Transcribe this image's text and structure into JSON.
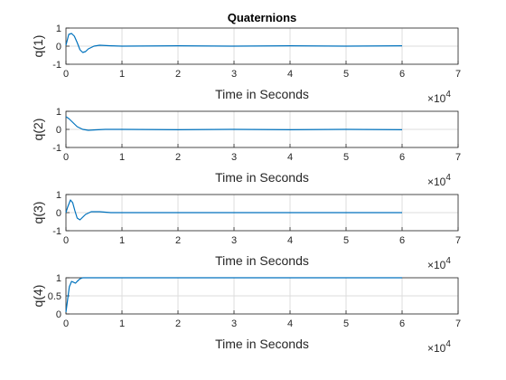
{
  "figure": {
    "title": "Quaternions",
    "accent_color": "#0072BD",
    "grid_color": "#dcdcdc",
    "axis_color": "#262626"
  },
  "chart_data": [
    {
      "type": "line",
      "title": "Quaternions",
      "xlabel": "Time in Seconds",
      "ylabel": "q(1)",
      "x_exponent_label": "×10",
      "x_exponent": "4",
      "xlim": [
        0,
        7
      ],
      "ylim": [
        -1,
        1
      ],
      "xticks": [
        0,
        1,
        2,
        3,
        4,
        5,
        6,
        7
      ],
      "yticks": [
        -1,
        0,
        1
      ],
      "grid": true,
      "series": [
        {
          "color": "#0072BD",
          "x": [
            0,
            0.05,
            0.1,
            0.15,
            0.2,
            0.25,
            0.3,
            0.35,
            0.4,
            0.5,
            0.6,
            0.8,
            1.0,
            2.0,
            3.0,
            4.0,
            5.0,
            6.0
          ],
          "y": [
            0.05,
            0.65,
            0.7,
            0.55,
            0.2,
            -0.2,
            -0.35,
            -0.3,
            -0.15,
            0.0,
            0.05,
            0.02,
            0.0,
            0.02,
            0.0,
            0.02,
            0.0,
            0.02
          ]
        }
      ]
    },
    {
      "type": "line",
      "xlabel": "Time in Seconds",
      "ylabel": "q(2)",
      "x_exponent_label": "×10",
      "x_exponent": "4",
      "xlim": [
        0,
        7
      ],
      "ylim": [
        -1,
        1
      ],
      "xticks": [
        0,
        1,
        2,
        3,
        4,
        5,
        6,
        7
      ],
      "yticks": [
        -1,
        0,
        1
      ],
      "grid": true,
      "series": [
        {
          "color": "#0072BD",
          "x": [
            0,
            0.05,
            0.1,
            0.15,
            0.2,
            0.3,
            0.4,
            0.5,
            0.7,
            1.0,
            2.0,
            3.0,
            4.0,
            5.0,
            6.0
          ],
          "y": [
            0.7,
            0.6,
            0.45,
            0.3,
            0.15,
            0.0,
            -0.05,
            -0.03,
            0.0,
            0.0,
            -0.02,
            0.0,
            -0.02,
            0.0,
            -0.02
          ]
        }
      ]
    },
    {
      "type": "line",
      "xlabel": "Time in Seconds",
      "ylabel": "q(3)",
      "x_exponent_label": "×10",
      "x_exponent": "4",
      "xlim": [
        0,
        7
      ],
      "ylim": [
        -1,
        1
      ],
      "xticks": [
        0,
        1,
        2,
        3,
        4,
        5,
        6,
        7
      ],
      "yticks": [
        -1,
        0,
        1
      ],
      "grid": true,
      "series": [
        {
          "color": "#0072BD",
          "x": [
            0,
            0.03,
            0.08,
            0.12,
            0.16,
            0.2,
            0.25,
            0.3,
            0.35,
            0.45,
            0.6,
            0.8,
            1.0,
            2.0,
            3.0,
            4.0,
            5.0,
            6.0
          ],
          "y": [
            0.0,
            0.3,
            0.7,
            0.55,
            0.1,
            -0.3,
            -0.4,
            -0.25,
            -0.1,
            0.05,
            0.05,
            0.0,
            0.0,
            0.0,
            0.0,
            0.0,
            0.0,
            0.0
          ]
        }
      ]
    },
    {
      "type": "line",
      "xlabel": "Time in Seconds",
      "ylabel": "q(4)",
      "x_exponent_label": "×10",
      "x_exponent": "4",
      "xlim": [
        0,
        7
      ],
      "ylim": [
        0,
        1
      ],
      "xticks": [
        0,
        1,
        2,
        3,
        4,
        5,
        6,
        7
      ],
      "yticks": [
        0,
        0.5,
        1
      ],
      "grid": true,
      "series": [
        {
          "color": "#0072BD",
          "x": [
            0,
            0.03,
            0.06,
            0.1,
            0.13,
            0.17,
            0.2,
            0.25,
            0.3,
            0.4,
            0.6,
            1.0,
            2.0,
            3.0,
            4.0,
            5.0,
            6.0
          ],
          "y": [
            0.05,
            0.4,
            0.75,
            0.9,
            0.88,
            0.85,
            0.9,
            0.97,
            1.0,
            1.0,
            1.0,
            1.0,
            1.0,
            1.0,
            1.0,
            1.0,
            1.0
          ]
        }
      ]
    }
  ]
}
